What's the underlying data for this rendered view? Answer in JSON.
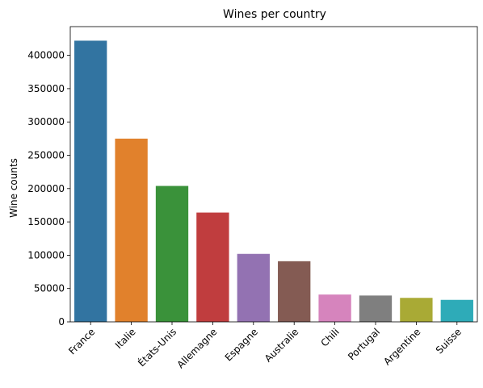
{
  "chart_data": {
    "type": "bar",
    "title": "Wines per country",
    "xlabel": "",
    "ylabel": "Wine counts",
    "categories": [
      "France",
      "Italie",
      "États-Unis",
      "Allemagne",
      "Espagne",
      "Australie",
      "Chili",
      "Portugal",
      "Argentine",
      "Suisse"
    ],
    "values": [
      422000,
      275000,
      204000,
      164000,
      102000,
      91000,
      41000,
      39500,
      36000,
      33000
    ],
    "colors": [
      "#3274a1",
      "#e1812c",
      "#3a923a",
      "#c03d3e",
      "#9372b2",
      "#845b53",
      "#d684bd",
      "#7f7f7f",
      "#a9aa35",
      "#2eabb8"
    ],
    "ylim": [
      0,
      443100
    ],
    "yticks": [
      0,
      50000,
      100000,
      150000,
      200000,
      250000,
      300000,
      350000,
      400000
    ],
    "grid": false,
    "legend": "none"
  }
}
